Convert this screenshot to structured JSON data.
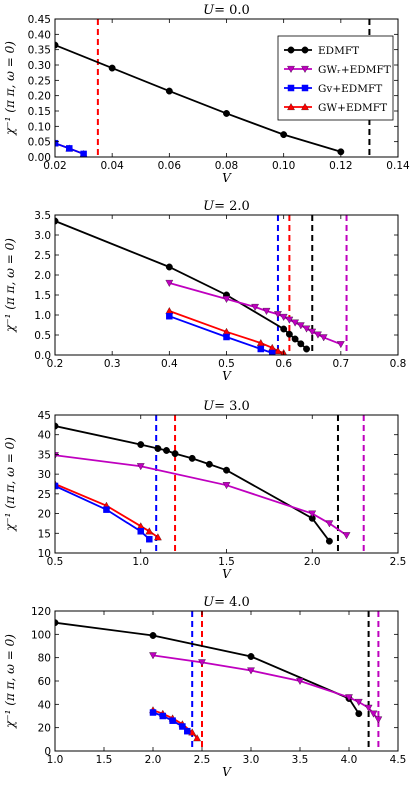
{
  "chart_data": [
    {
      "type": "line",
      "title": "U = 0.0",
      "title_var": "U",
      "title_value": "= 0.0",
      "xlabel": "V",
      "ylabel": "χ⁻¹ (π π, ω = 0)",
      "xlim": [
        0.02,
        0.14
      ],
      "ylim": [
        0.0,
        0.45
      ],
      "xticks": [
        "0.02",
        "0.04",
        "0.06",
        "0.08",
        "0.10",
        "0.12",
        "0.14"
      ],
      "xtick_values": [
        0.02,
        0.04,
        0.06,
        0.08,
        0.1,
        0.12,
        0.14
      ],
      "yticks": [
        "0.00",
        "0.05",
        "0.10",
        "0.15",
        "0.20",
        "0.25",
        "0.30",
        "0.35",
        "0.40",
        "0.45"
      ],
      "ytick_values": [
        0.0,
        0.05,
        0.1,
        0.15,
        0.2,
        0.25,
        0.3,
        0.35,
        0.4,
        0.45
      ],
      "legend": {
        "placement": "right",
        "entries": [
          {
            "label": "EDMFT",
            "color": "#000000",
            "marker": "circle"
          },
          {
            "label": "GWᵣ+EDMFT",
            "color": "#bf00bf",
            "marker": "triangle-down"
          },
          {
            "label": "Gv+EDMFT",
            "color": "#0000ff",
            "marker": "square"
          },
          {
            "label": "GW+EDMFT",
            "color": "#ff0000",
            "marker": "triangle-up"
          }
        ]
      },
      "series": [
        {
          "name": "EDMFT",
          "color": "#000000",
          "marker": "circle",
          "x": [
            0.02,
            0.04,
            0.06,
            0.08,
            0.1,
            0.12
          ],
          "y": [
            0.365,
            0.29,
            0.215,
            0.142,
            0.073,
            0.017
          ]
        },
        {
          "name": "GW+EDMFT",
          "color": "#ff0000",
          "marker": "triangle-up",
          "x": [
            0.02,
            0.025,
            0.03
          ],
          "y": [
            0.045,
            0.028,
            0.01
          ]
        },
        {
          "name": "Gv+EDMFT",
          "color": "#0000ff",
          "marker": "square",
          "x": [
            0.02,
            0.025,
            0.03
          ],
          "y": [
            0.045,
            0.028,
            0.01
          ]
        }
      ],
      "vlines": [
        {
          "x": 0.035,
          "color": "#ff0000"
        },
        {
          "x": 0.13,
          "color": "#000000"
        }
      ]
    },
    {
      "type": "line",
      "title": "U = 2.0",
      "title_var": "U",
      "title_value": "= 2.0",
      "xlabel": "V",
      "ylabel": "χ⁻¹ (π π, ω = 0)",
      "xlim": [
        0.2,
        0.8
      ],
      "ylim": [
        0.0,
        3.5
      ],
      "xticks": [
        "0.2",
        "0.3",
        "0.4",
        "0.5",
        "0.6",
        "0.7",
        "0.8"
      ],
      "xtick_values": [
        0.2,
        0.3,
        0.4,
        0.5,
        0.6,
        0.7,
        0.8
      ],
      "yticks": [
        "0.0",
        "0.5",
        "1.0",
        "1.5",
        "2.0",
        "2.5",
        "3.0",
        "3.5"
      ],
      "ytick_values": [
        0.0,
        0.5,
        1.0,
        1.5,
        2.0,
        2.5,
        3.0,
        3.5
      ],
      "series": [
        {
          "name": "EDMFT",
          "color": "#000000",
          "marker": "circle",
          "x": [
            0.2,
            0.4,
            0.5,
            0.6,
            0.61,
            0.62,
            0.63,
            0.64
          ],
          "y": [
            3.35,
            2.2,
            1.5,
            0.65,
            0.52,
            0.4,
            0.28,
            0.15
          ]
        },
        {
          "name": "GWᵣ+EDMFT",
          "color": "#bf00bf",
          "marker": "triangle-down",
          "x": [
            0.4,
            0.5,
            0.55,
            0.57,
            0.59,
            0.6,
            0.61,
            0.62,
            0.63,
            0.64,
            0.65,
            0.66,
            0.67,
            0.7
          ],
          "y": [
            1.8,
            1.4,
            1.2,
            1.1,
            1.02,
            0.95,
            0.88,
            0.81,
            0.74,
            0.66,
            0.58,
            0.51,
            0.44,
            0.27
          ]
        },
        {
          "name": "GW+EDMFT",
          "color": "#ff0000",
          "marker": "triangle-up",
          "x": [
            0.4,
            0.5,
            0.56,
            0.58,
            0.59,
            0.6
          ],
          "y": [
            1.1,
            0.58,
            0.3,
            0.18,
            0.1,
            0.05
          ]
        },
        {
          "name": "Gv+EDMFT",
          "color": "#0000ff",
          "marker": "square",
          "x": [
            0.4,
            0.5,
            0.56,
            0.58
          ],
          "y": [
            0.97,
            0.45,
            0.15,
            0.05
          ]
        }
      ],
      "vlines": [
        {
          "x": 0.59,
          "color": "#0000ff"
        },
        {
          "x": 0.61,
          "color": "#ff0000"
        },
        {
          "x": 0.65,
          "color": "#000000"
        },
        {
          "x": 0.71,
          "color": "#bf00bf"
        }
      ]
    },
    {
      "type": "line",
      "title": "U = 3.0",
      "title_var": "U",
      "title_value": "= 3.0",
      "xlabel": "V",
      "ylabel": "χ⁻¹ (π π, ω = 0)",
      "xlim": [
        0.5,
        2.5
      ],
      "ylim": [
        10,
        45
      ],
      "xticks": [
        "0.5",
        "1.0",
        "1.5",
        "2.0",
        "2.5"
      ],
      "xtick_values": [
        0.5,
        1.0,
        1.5,
        2.0,
        2.5
      ],
      "yticks": [
        "10",
        "15",
        "20",
        "25",
        "30",
        "35",
        "40",
        "45"
      ],
      "ytick_values": [
        10,
        15,
        20,
        25,
        30,
        35,
        40,
        45
      ],
      "series": [
        {
          "name": "EDMFT",
          "color": "#000000",
          "marker": "circle",
          "x": [
            0.5,
            1.0,
            1.1,
            1.15,
            1.2,
            1.3,
            1.4,
            1.5,
            2.0,
            2.1
          ],
          "y": [
            42.2,
            37.5,
            36.5,
            36.0,
            35.2,
            34.0,
            32.5,
            31.0,
            18.8,
            13.0
          ]
        },
        {
          "name": "GWᵣ+EDMFT",
          "color": "#bf00bf",
          "marker": "triangle-down",
          "x": [
            0.5,
            1.0,
            1.5,
            2.0,
            2.1,
            2.2
          ],
          "y": [
            34.8,
            32.0,
            27.2,
            20.0,
            17.5,
            14.5
          ]
        },
        {
          "name": "GW+EDMFT",
          "color": "#ff0000",
          "marker": "triangle-up",
          "x": [
            0.5,
            0.8,
            1.0,
            1.05,
            1.1
          ],
          "y": [
            27.5,
            22.0,
            16.8,
            15.5,
            14.0
          ]
        },
        {
          "name": "Gv+EDMFT",
          "color": "#0000ff",
          "marker": "square",
          "x": [
            0.5,
            0.8,
            1.0,
            1.05
          ],
          "y": [
            27.0,
            21.0,
            15.5,
            13.5
          ]
        }
      ],
      "vlines": [
        {
          "x": 1.09,
          "color": "#0000ff"
        },
        {
          "x": 1.2,
          "color": "#ff0000"
        },
        {
          "x": 2.15,
          "color": "#000000"
        },
        {
          "x": 2.3,
          "color": "#bf00bf"
        }
      ]
    },
    {
      "type": "line",
      "title": "U = 4.0",
      "title_var": "U",
      "title_value": "= 4.0",
      "xlabel": "V",
      "ylabel": "χ⁻¹ (π π, ω = 0)",
      "xlim": [
        1.0,
        4.5
      ],
      "ylim": [
        0,
        120
      ],
      "xticks": [
        "1.0",
        "1.5",
        "2.0",
        "2.5",
        "3.0",
        "3.5",
        "4.0",
        "4.5"
      ],
      "xtick_values": [
        1.0,
        1.5,
        2.0,
        2.5,
        3.0,
        3.5,
        4.0,
        4.5
      ],
      "yticks": [
        "0",
        "20",
        "40",
        "60",
        "80",
        "100",
        "120"
      ],
      "ytick_values": [
        0,
        20,
        40,
        60,
        80,
        100,
        120
      ],
      "series": [
        {
          "name": "EDMFT",
          "color": "#000000",
          "marker": "circle",
          "x": [
            1.0,
            2.0,
            3.0,
            4.0,
            4.1
          ],
          "y": [
            110,
            99,
            81,
            45,
            32
          ]
        },
        {
          "name": "GWᵣ+EDMFT",
          "color": "#bf00bf",
          "marker": "triangle-down",
          "x": [
            2.0,
            2.5,
            3.0,
            3.5,
            4.0,
            4.1,
            4.2,
            4.25,
            4.3
          ],
          "y": [
            82,
            76,
            69,
            60,
            46,
            42,
            37,
            32,
            27
          ]
        },
        {
          "name": "GW+EDMFT",
          "color": "#ff0000",
          "marker": "triangle-up",
          "x": [
            2.0,
            2.1,
            2.2,
            2.3,
            2.4,
            2.45
          ],
          "y": [
            35,
            32,
            28,
            23,
            16,
            11
          ]
        },
        {
          "name": "Gv+EDMFT",
          "color": "#0000ff",
          "marker": "square",
          "x": [
            2.0,
            2.1,
            2.2,
            2.3,
            2.35
          ],
          "y": [
            33,
            30,
            26,
            21,
            17
          ]
        }
      ],
      "vlines": [
        {
          "x": 2.4,
          "color": "#0000ff"
        },
        {
          "x": 2.5,
          "color": "#ff0000"
        },
        {
          "x": 4.2,
          "color": "#000000"
        },
        {
          "x": 4.3,
          "color": "#bf00bf"
        }
      ]
    }
  ]
}
